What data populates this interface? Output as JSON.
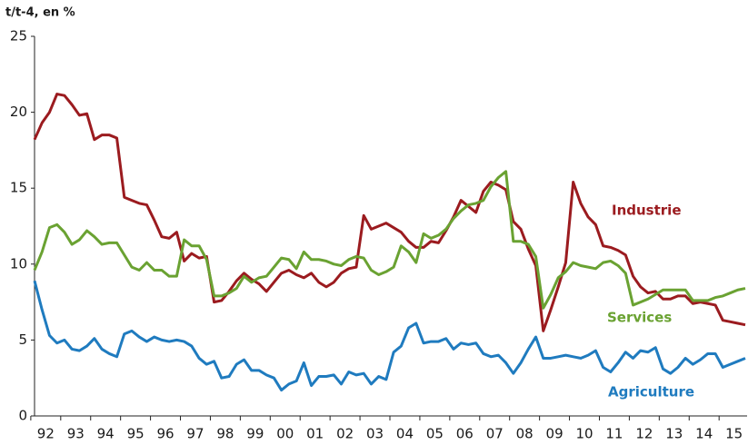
{
  "chart_data": {
    "type": "line",
    "y_unit_label": "t/t-4, en %",
    "categories": [
      null,
      "92",
      null,
      null,
      null,
      "93",
      null,
      null,
      null,
      "94",
      null,
      null,
      null,
      "95",
      null,
      null,
      null,
      "96",
      null,
      null,
      null,
      "97",
      null,
      null,
      null,
      "98",
      null,
      null,
      null,
      "99",
      null,
      null,
      null,
      "00",
      null,
      null,
      null,
      "01",
      null,
      null,
      null,
      "02",
      null,
      null,
      null,
      "03",
      null,
      null,
      null,
      "04",
      null,
      null,
      null,
      "05",
      null,
      null,
      null,
      "06",
      null,
      null,
      null,
      "07",
      null,
      null,
      null,
      "08",
      null,
      null,
      null,
      "09",
      null,
      null,
      null,
      "10",
      null,
      null,
      null,
      "11",
      null,
      null,
      null,
      "12",
      null,
      null,
      null,
      "13",
      null,
      null,
      null,
      "14",
      null,
      null,
      null,
      "15",
      null,
      null
    ],
    "ylim": [
      0,
      25
    ],
    "yticks": [
      0,
      5,
      10,
      15,
      20,
      25
    ],
    "grid": false,
    "series": [
      {
        "name": "Industrie",
        "color": "#9b1b1f",
        "values": [
          18.2,
          19.3,
          20.0,
          21.2,
          21.1,
          20.5,
          19.8,
          19.9,
          18.2,
          18.5,
          18.5,
          18.3,
          14.4,
          14.2,
          14.0,
          13.9,
          12.9,
          11.8,
          11.7,
          12.1,
          10.2,
          10.7,
          10.4,
          10.5,
          7.5,
          7.6,
          8.2,
          8.9,
          9.4,
          9.0,
          8.7,
          8.2,
          8.8,
          9.4,
          9.6,
          9.3,
          9.1,
          9.4,
          8.8,
          8.5,
          8.8,
          9.4,
          9.7,
          9.8,
          13.2,
          12.3,
          12.5,
          12.7,
          12.4,
          12.1,
          11.5,
          11.1,
          11.1,
          11.5,
          11.4,
          12.2,
          13.1,
          14.2,
          13.8,
          13.4,
          14.8,
          15.4,
          15.2,
          14.9,
          12.8,
          12.3,
          11.0,
          9.9,
          5.6,
          7.0,
          8.5,
          10.1,
          15.4,
          14.0,
          13.1,
          12.6,
          11.2,
          11.1,
          10.9,
          10.6,
          9.2,
          8.5,
          8.1,
          8.2,
          7.7,
          7.7,
          7.9,
          7.9,
          7.4,
          7.5,
          7.4,
          7.3,
          6.3,
          6.2,
          6.1,
          6.0
        ]
      },
      {
        "name": "Services",
        "color": "#6aa232",
        "values": [
          9.6,
          10.8,
          12.4,
          12.6,
          12.1,
          11.3,
          11.6,
          12.2,
          11.8,
          11.3,
          11.4,
          11.4,
          10.6,
          9.8,
          9.6,
          10.1,
          9.6,
          9.6,
          9.2,
          9.2,
          11.6,
          11.2,
          11.2,
          10.3,
          7.9,
          7.9,
          8.1,
          8.4,
          9.2,
          8.8,
          9.1,
          9.2,
          9.8,
          10.4,
          10.3,
          9.7,
          10.8,
          10.3,
          10.3,
          10.2,
          10.0,
          9.9,
          10.3,
          10.5,
          10.4,
          9.6,
          9.3,
          9.5,
          9.8,
          11.2,
          10.8,
          10.1,
          12.0,
          11.7,
          11.9,
          12.3,
          13.0,
          13.5,
          13.9,
          14.0,
          14.2,
          15.1,
          15.7,
          16.1,
          11.5,
          11.5,
          11.3,
          10.5,
          7.1,
          8.0,
          9.1,
          9.5,
          10.1,
          9.9,
          9.8,
          9.7,
          10.1,
          10.2,
          9.9,
          9.4,
          7.3,
          7.5,
          7.7,
          8.0,
          8.3,
          8.3,
          8.3,
          8.3,
          7.6,
          7.6,
          7.6,
          7.8,
          7.9,
          8.1,
          8.3,
          8.4
        ]
      },
      {
        "name": "Agriculture",
        "color": "#1f7bbf",
        "values": [
          8.9,
          7.0,
          5.3,
          4.8,
          5.0,
          4.4,
          4.3,
          4.6,
          5.1,
          4.4,
          4.1,
          3.9,
          5.4,
          5.6,
          5.2,
          4.9,
          5.2,
          5.0,
          4.9,
          5.0,
          4.9,
          4.6,
          3.8,
          3.4,
          3.6,
          2.5,
          2.6,
          3.4,
          3.7,
          3.0,
          3.0,
          2.7,
          2.5,
          1.7,
          2.1,
          2.3,
          3.5,
          2.0,
          2.6,
          2.6,
          2.7,
          2.1,
          2.9,
          2.7,
          2.8,
          2.1,
          2.6,
          2.4,
          4.2,
          4.6,
          5.8,
          6.1,
          4.8,
          4.9,
          4.9,
          5.1,
          4.4,
          4.8,
          4.7,
          4.8,
          4.1,
          3.9,
          4.0,
          3.5,
          2.8,
          3.5,
          4.4,
          5.2,
          3.8,
          3.8,
          3.9,
          4.0,
          3.9,
          3.8,
          4.0,
          4.3,
          3.2,
          2.9,
          3.5,
          4.2,
          3.8,
          4.3,
          4.2,
          4.5,
          3.1,
          2.8,
          3.2,
          3.8,
          3.4,
          3.7,
          4.1,
          4.1,
          3.2,
          3.4,
          3.6,
          3.8
        ]
      }
    ]
  }
}
